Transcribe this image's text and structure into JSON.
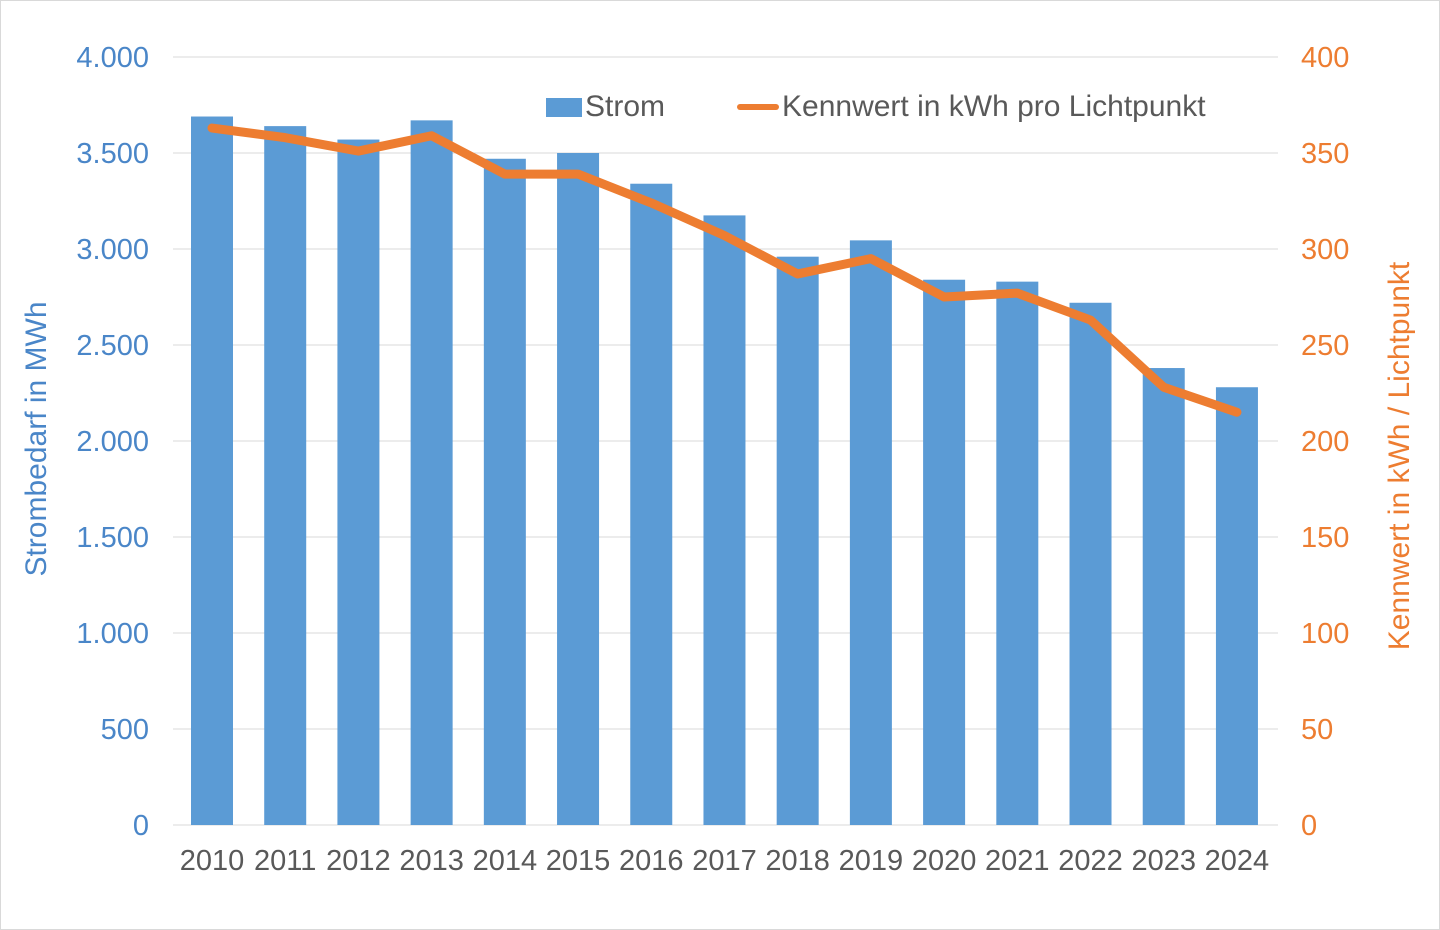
{
  "chart_data": {
    "type": "bar",
    "subtype": "bar+line combo, dual axis",
    "categories": [
      "2010",
      "2011",
      "2012",
      "2013",
      "2014",
      "2015",
      "2016",
      "2017",
      "2018",
      "2019",
      "2020",
      "2021",
      "2022",
      "2023",
      "2024"
    ],
    "series": [
      {
        "name": "Strom",
        "type": "bar",
        "axis": "left",
        "unit": "MWh",
        "values": [
          3690,
          3640,
          3570,
          3670,
          3470,
          3500,
          3340,
          3175,
          2960,
          3045,
          2840,
          2830,
          2720,
          2380,
          2280
        ]
      },
      {
        "name": "Kennwert in kWh pro Lichtpunkt",
        "type": "line",
        "axis": "right",
        "unit": "kWh/Lichtpunkt",
        "values": [
          363,
          358,
          351,
          359,
          339,
          339,
          324,
          307,
          287,
          295,
          275,
          277,
          263,
          228,
          215
        ]
      }
    ],
    "left_axis": {
      "title": "Strombedarf in MWh",
      "min": 0,
      "max": 4000,
      "step": 500,
      "tick_labels": [
        "4.000",
        "3.500",
        "3.000",
        "2.500",
        "2.000",
        "1.500",
        "1.000",
        "500",
        "0"
      ]
    },
    "right_axis": {
      "title": "Kennwert in kWh / Lichtpunkt",
      "min": 0,
      "max": 400,
      "step": 50,
      "tick_labels": [
        "400",
        "350",
        "300",
        "250",
        "200",
        "150",
        "100",
        "50",
        "0"
      ]
    },
    "grid": "horizontal gridlines on",
    "legend_position": "top"
  },
  "legend": {
    "items": [
      {
        "label": "Strom",
        "swatch": "bar"
      },
      {
        "label": "Kennwert in kWh pro Lichtpunkt",
        "swatch": "line"
      }
    ]
  },
  "colors": {
    "bar": "#5B9BD5",
    "line": "#ED7D31",
    "left_axis_text": "#4A86C8",
    "right_axis_text": "#ED7D31",
    "category_text": "#595959",
    "legend_text": "#595959",
    "gridline": "#D9D9D9",
    "background": "#FFFFFF",
    "border": "#D9D9D9"
  }
}
